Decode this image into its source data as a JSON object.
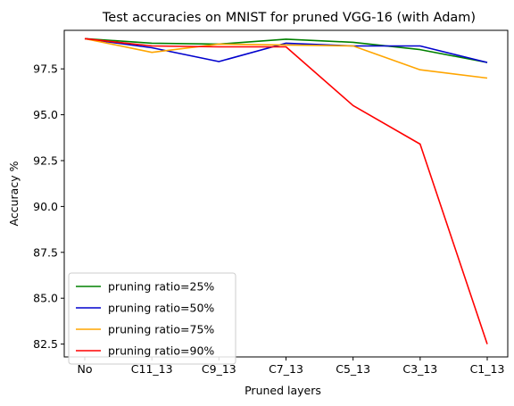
{
  "chart_data": {
    "type": "line",
    "title": "Test accuracies on MNIST for pruned VGG-16 (with Adam)",
    "xlabel": "Pruned layers",
    "ylabel": "Accuracy %",
    "categories": [
      "No",
      "C11_13",
      "C9_13",
      "C7_13",
      "C5_13",
      "C3_13",
      "C1_13"
    ],
    "yticks": [
      82.5,
      85.0,
      87.5,
      90.0,
      92.5,
      95.0,
      97.5
    ],
    "ylim": [
      81.8,
      99.6
    ],
    "grid": false,
    "legend_position": "lower-left",
    "series": [
      {
        "name": "pruning ratio=25%",
        "color": "#008000",
        "values": [
          99.15,
          98.9,
          98.85,
          99.12,
          98.95,
          98.55,
          97.85
        ]
      },
      {
        "name": "pruning ratio=50%",
        "color": "#0000cd",
        "values": [
          99.15,
          98.65,
          97.9,
          98.9,
          98.75,
          98.75,
          97.85
        ]
      },
      {
        "name": "pruning ratio=75%",
        "color": "#ffa500",
        "values": [
          99.15,
          98.4,
          98.85,
          98.8,
          98.75,
          97.45,
          97.0
        ]
      },
      {
        "name": "pruning ratio=90%",
        "color": "#ff0000",
        "values": [
          99.15,
          98.75,
          98.7,
          98.7,
          95.5,
          93.4,
          82.5
        ]
      }
    ]
  }
}
